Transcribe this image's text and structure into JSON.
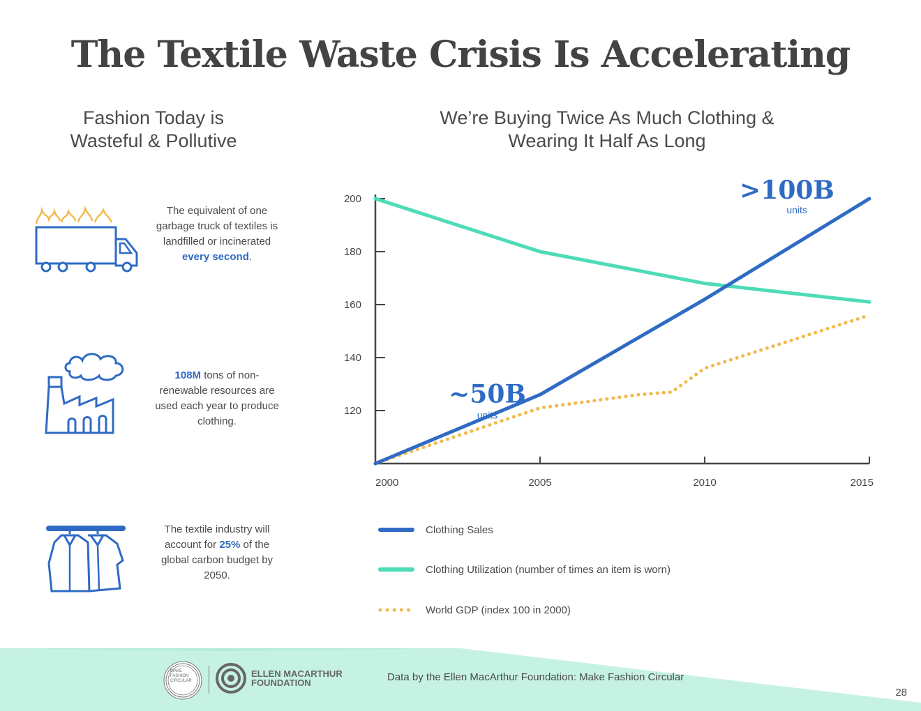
{
  "title": "The Textile Waste Crisis Is Accelerating",
  "left_heading": {
    "line1": "Fashion Today is",
    "line2": "Wasteful & Pollutive"
  },
  "right_heading": {
    "line1": "We’re Buying Twice As Much Clothing &",
    "line2": "Wearing It Half As Long"
  },
  "stats": [
    {
      "icon": "garbage-truck-fire-icon",
      "text_before": "The equivalent of one garbage truck of textiles is landfilled or incinerated ",
      "highlight": "every second",
      "text_after": "."
    },
    {
      "icon": "factory-smoke-icon",
      "highlight": "108M",
      "text_after": " tons of non-renewable resources are used each year to produce clothing."
    },
    {
      "icon": "clothes-rack-icon",
      "text_before": "The textile industry will account for ",
      "highlight": "25%",
      "text_after": " of the global carbon budget by 2050."
    }
  ],
  "chart_data": {
    "type": "line",
    "title": "We’re Buying Twice As Much Clothing & Wearing It Half As Long",
    "xlabel": "",
    "ylabel": "",
    "x_ticks": [
      2000,
      2005,
      2010,
      2015
    ],
    "y_ticks": [
      120,
      140,
      160,
      180,
      200
    ],
    "xlim": [
      2000,
      2015
    ],
    "ylim": [
      100,
      200
    ],
    "series": [
      {
        "name": "Clothing Sales",
        "color": "#2f6bc4",
        "style": "solid",
        "x": [
          2000,
          2005,
          2010,
          2015
        ],
        "values": [
          100,
          126,
          162,
          200
        ]
      },
      {
        "name": "Clothing Utilization (number of times an item is worn)",
        "color": "#4ddbb8",
        "style": "solid",
        "x": [
          2000,
          2005,
          2010,
          2015
        ],
        "values": [
          200,
          180,
          168,
          161
        ]
      },
      {
        "name": "World GDP (index 100 in 2000)",
        "color": "#f2b94a",
        "style": "dotted",
        "x": [
          2000,
          2005,
          2008,
          2009,
          2010,
          2015
        ],
        "values": [
          100,
          121,
          126,
          127,
          136,
          156
        ]
      }
    ],
    "annotations": [
      {
        "label": "~50B",
        "sub": "units"
      },
      {
        "label": ">100B",
        "sub": "units"
      }
    ]
  },
  "source": "Data by the Ellen MacArthur Foundation: Make Fashion Circular",
  "logos": {
    "mfc": "MAKE FASHION CIRCULAR",
    "emf_line1": "ELLEN MACARTHUR",
    "emf_line2": "FOUNDATION"
  },
  "page_number": "28",
  "colors": {
    "blue": "#2f6bc4",
    "mint": "#4ddbb8",
    "gold": "#f2b94a",
    "band": "#c6f2e4"
  }
}
